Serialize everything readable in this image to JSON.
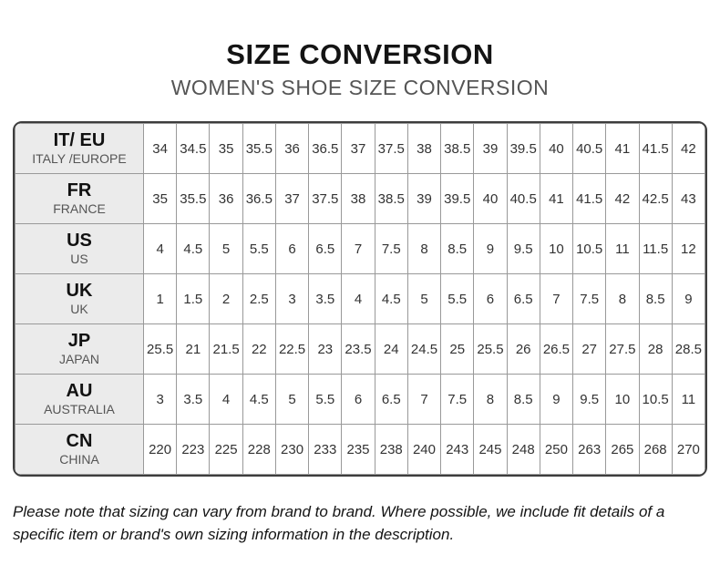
{
  "header": {
    "title": "SIZE CONVERSION",
    "subtitle": "WOMEN'S SHOE SIZE CONVERSION"
  },
  "chart_data": {
    "type": "table",
    "title": "SIZE CONVERSION",
    "subtitle": "WOMEN'S SHOE SIZE CONVERSION",
    "rows": [
      {
        "code": "IT/ EU",
        "region": "ITALY /EUROPE",
        "values": [
          "34",
          "34.5",
          "35",
          "35.5",
          "36",
          "36.5",
          "37",
          "37.5",
          "38",
          "38.5",
          "39",
          "39.5",
          "40",
          "40.5",
          "41",
          "41.5",
          "42"
        ]
      },
      {
        "code": "FR",
        "region": "FRANCE",
        "values": [
          "35",
          "35.5",
          "36",
          "36.5",
          "37",
          "37.5",
          "38",
          "38.5",
          "39",
          "39.5",
          "40",
          "40.5",
          "41",
          "41.5",
          "42",
          "42.5",
          "43"
        ]
      },
      {
        "code": "US",
        "region": "US",
        "values": [
          "4",
          "4.5",
          "5",
          "5.5",
          "6",
          "6.5",
          "7",
          "7.5",
          "8",
          "8.5",
          "9",
          "9.5",
          "10",
          "10.5",
          "11",
          "11.5",
          "12"
        ]
      },
      {
        "code": "UK",
        "region": "UK",
        "values": [
          "1",
          "1.5",
          "2",
          "2.5",
          "3",
          "3.5",
          "4",
          "4.5",
          "5",
          "5.5",
          "6",
          "6.5",
          "7",
          "7.5",
          "8",
          "8.5",
          "9"
        ]
      },
      {
        "code": "JP",
        "region": "JAPAN",
        "values": [
          "25.5",
          "21",
          "21.5",
          "22",
          "22.5",
          "23",
          "23.5",
          "24",
          "24.5",
          "25",
          "25.5",
          "26",
          "26.5",
          "27",
          "27.5",
          "28",
          "28.5"
        ]
      },
      {
        "code": "AU",
        "region": "AUSTRALIA",
        "values": [
          "3",
          "3.5",
          "4",
          "4.5",
          "5",
          "5.5",
          "6",
          "6.5",
          "7",
          "7.5",
          "8",
          "8.5",
          "9",
          "9.5",
          "10",
          "10.5",
          "11"
        ]
      },
      {
        "code": "CN",
        "region": "CHINA",
        "values": [
          "220",
          "223",
          "225",
          "228",
          "230",
          "233",
          "235",
          "238",
          "240",
          "243",
          "245",
          "248",
          "250",
          "263",
          "265",
          "268",
          "270"
        ]
      }
    ]
  },
  "note": "Please note that sizing can vary from brand to brand. Where possible, we include fit details of a specific item or brand's own sizing information in the description.",
  "colors": {
    "header_cell_bg": "#ebebeb",
    "outer_border": "#3d3d3d",
    "grid_line": "#999999",
    "title_text": "#141414",
    "subtitle_text": "#555555",
    "cell_text": "#333333"
  }
}
